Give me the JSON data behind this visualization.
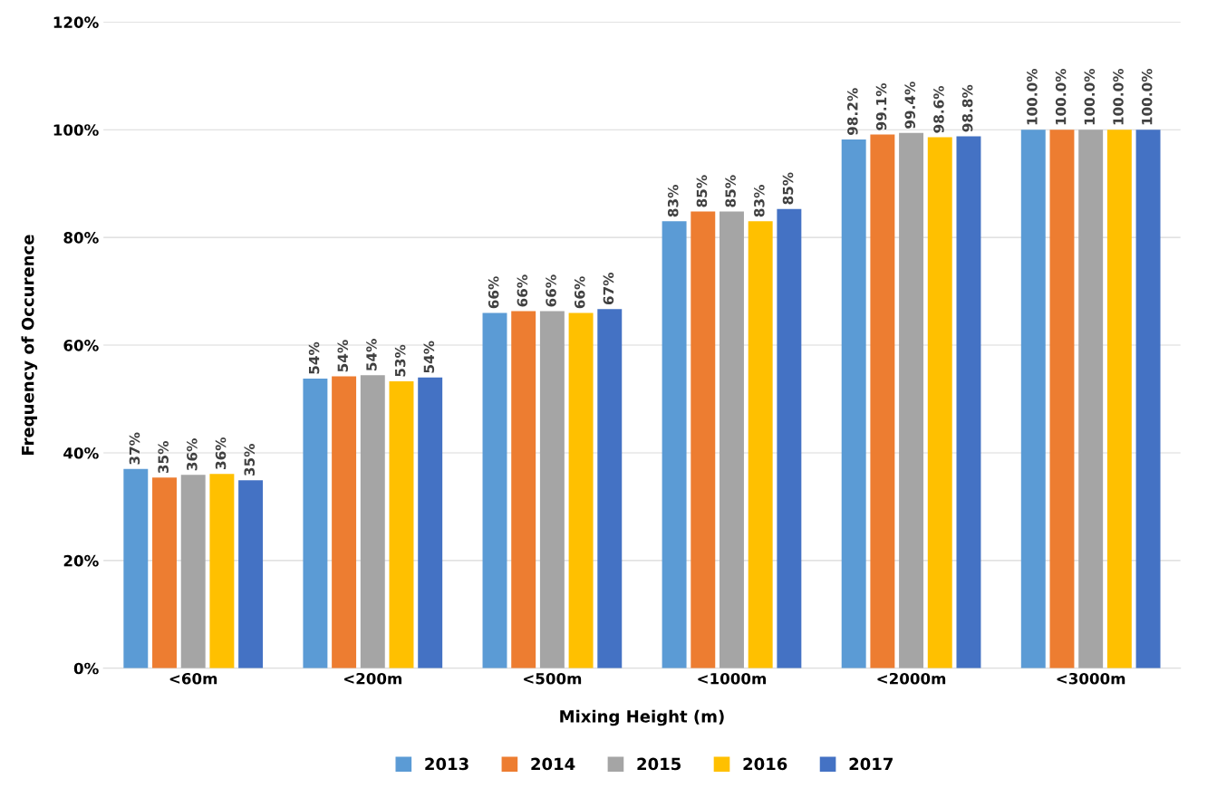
{
  "chart_data": {
    "type": "bar",
    "xlabel": "Mixing Height (m)",
    "ylabel": "Frequency of Occurence",
    "categories": [
      "<60m",
      "<200m",
      "<500m",
      "<1000m",
      "<2000m",
      "<3000m"
    ],
    "series": [
      {
        "name": "2013",
        "color": "#5b9bd5",
        "values": [
          37,
          53.8,
          66,
          83,
          98.2,
          100
        ],
        "value_labels": [
          "37%",
          "54%",
          "66%",
          "83%",
          "98.2%",
          "100.0%"
        ]
      },
      {
        "name": "2014",
        "color": "#ed7d31",
        "values": [
          35.4,
          54.2,
          66.3,
          84.8,
          99.1,
          100
        ],
        "value_labels": [
          "35%",
          "54%",
          "66%",
          "85%",
          "99.1%",
          "100.0%"
        ]
      },
      {
        "name": "2015",
        "color": "#a5a5a5",
        "values": [
          35.9,
          54.4,
          66.3,
          84.8,
          99.4,
          100
        ],
        "value_labels": [
          "36%",
          "54%",
          "66%",
          "85%",
          "99.4%",
          "100.0%"
        ]
      },
      {
        "name": "2016",
        "color": "#ffc000",
        "values": [
          36.1,
          53.3,
          66.0,
          83.0,
          98.6,
          100
        ],
        "value_labels": [
          "36%",
          "53%",
          "66%",
          "83%",
          "98.6%",
          "100.0%"
        ]
      },
      {
        "name": "2017",
        "color": "#4472c4",
        "values": [
          34.9,
          54.0,
          66.7,
          85.3,
          98.8,
          100
        ],
        "value_labels": [
          "35%",
          "54%",
          "67%",
          "85%",
          "98.8%",
          "100.0%"
        ]
      }
    ],
    "ylim": [
      0,
      120
    ],
    "yticks": [
      {
        "value": 0,
        "label": "0%"
      },
      {
        "value": 20,
        "label": "20%"
      },
      {
        "value": 40,
        "label": "40%"
      },
      {
        "value": 60,
        "label": "60%"
      },
      {
        "value": 80,
        "label": "80%"
      },
      {
        "value": 100,
        "label": "100%"
      },
      {
        "value": 120,
        "label": "120%"
      }
    ],
    "grid": "y",
    "legend": "bottom"
  }
}
